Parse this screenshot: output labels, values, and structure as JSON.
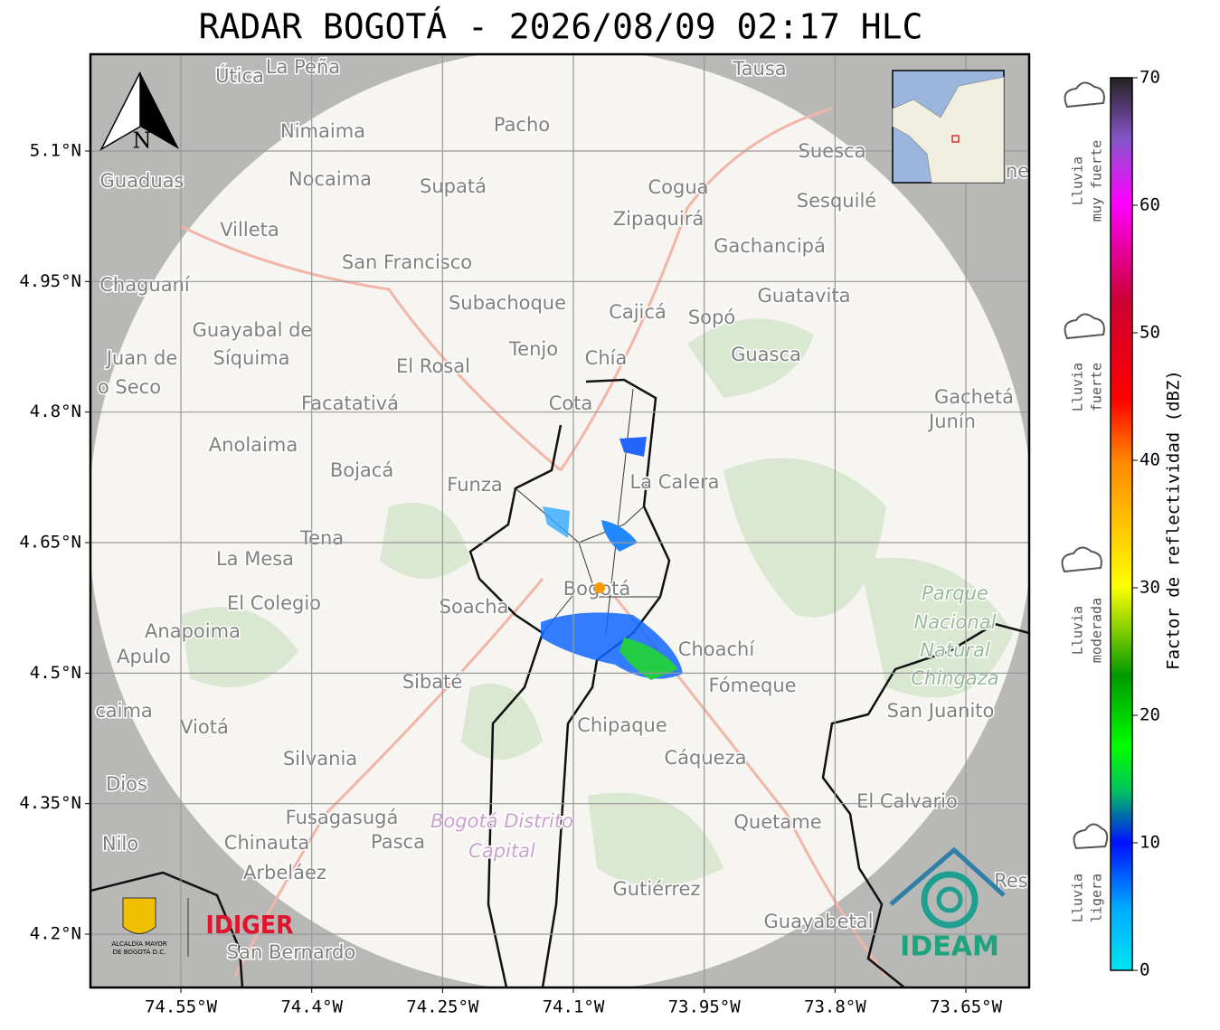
{
  "title": "RADAR BOGOTÁ - 2026/08/09 02:17 HLC",
  "map": {
    "xlim": [
      -74.6537,
      -73.5774
    ],
    "ylim": [
      4.1387,
      5.2112
    ],
    "xticks": [
      {
        "value": -74.55,
        "label": "74.55°W"
      },
      {
        "value": -74.4,
        "label": "74.4°W"
      },
      {
        "value": -74.25,
        "label": "74.25°W"
      },
      {
        "value": -74.1,
        "label": "74.1°W"
      },
      {
        "value": -73.95,
        "label": "73.95°W"
      },
      {
        "value": -73.8,
        "label": "73.8°W"
      },
      {
        "value": -73.65,
        "label": "73.65°W"
      }
    ],
    "yticks": [
      {
        "value": 5.1,
        "label": "5.1°N"
      },
      {
        "value": 4.95,
        "label": "4.95°N"
      },
      {
        "value": 4.8,
        "label": "4.8°N"
      },
      {
        "value": 4.65,
        "label": "4.65°N"
      },
      {
        "value": 4.5,
        "label": "4.5°N"
      },
      {
        "value": 4.35,
        "label": "4.35°N"
      },
      {
        "value": 4.2,
        "label": "4.2°N"
      }
    ],
    "north": "N",
    "places": [
      "Útica",
      "La Peña",
      "Tausa",
      "Pacho",
      "Nimaima",
      "Guaduas",
      "Nocaima",
      "Supatá",
      "Cogua",
      "Suesca",
      "Sesquilé",
      "Zipaquirá",
      "Villeta",
      "Gachancipá",
      "San Francisco",
      "Chaguaní",
      "Guatavita",
      "Subachoque",
      "Cajicá",
      "Sopó",
      "Guayabal de",
      "Síquima",
      "Juan de",
      "o Seco",
      "Tenjo",
      "Chía",
      "Guasca",
      "El Rosal",
      "Facatativá",
      "Cota",
      "Gachetá",
      "Junín",
      "Anolaima",
      "Bojacá",
      "La Calera",
      "Funza",
      "Tena",
      "La Mesa",
      "El Colegio",
      "Soacha",
      "Bogotá",
      "Parque",
      "Nacional",
      "Natural",
      "Chingaza",
      "Anapoima",
      "Apulo",
      "Choachí",
      "Sibaté",
      "Fómeque",
      "San Juanito",
      "caima",
      "Viotá",
      "Chipaque",
      "Silvania",
      "Cáqueza",
      "Dios",
      "El Calvario",
      "Fusagasugá",
      "Bogotá Distrito",
      "Capital",
      "Quetame",
      "Nilo",
      "Chinauta",
      "Pasca",
      "Arbeláez",
      "Gutiérrez",
      "Res",
      "Guayabetal",
      "San Bernardo",
      "ne"
    ]
  },
  "colorbar": {
    "label": "Factor de reflectividad (dBZ)",
    "lim": [
      0,
      70
    ],
    "ticks": [
      0,
      10,
      20,
      30,
      40,
      50,
      60,
      70
    ],
    "categories": [
      [
        "Lluvia",
        "muy fuerte"
      ],
      [
        "Lluvia",
        "fuerte"
      ],
      [
        "Lluvia",
        "moderada"
      ],
      [
        "Lluvia",
        "ligera"
      ]
    ]
  },
  "logos": {
    "alcaldia": [
      "ALCALDÍA MAYOR",
      "DE BOGOTÁ D.C."
    ],
    "idiger": "IDIGER",
    "ideam": "IDEAM"
  }
}
